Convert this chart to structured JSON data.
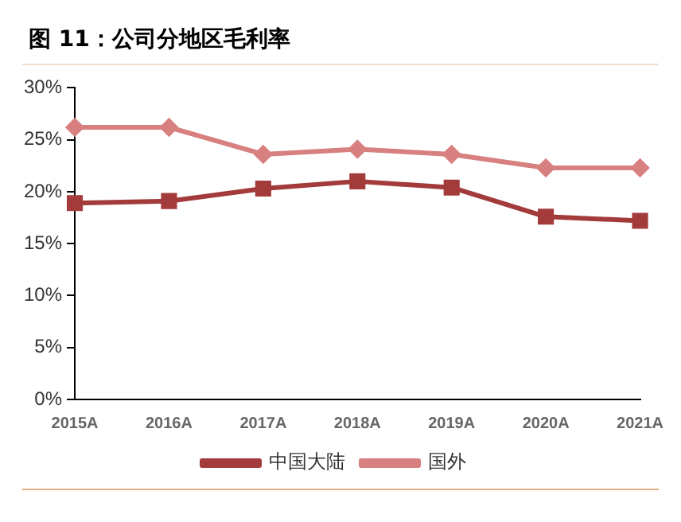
{
  "chart_data": {
    "type": "line",
    "title": "图 11：公司分地区毛利率",
    "categories": [
      "2015A",
      "2016A",
      "2017A",
      "2018A",
      "2019A",
      "2020A",
      "2021A"
    ],
    "series": [
      {
        "name": "中国大陆",
        "color": "#a33b3b",
        "marker": "square",
        "values": [
          18.9,
          19.1,
          20.3,
          21.0,
          20.4,
          17.6,
          17.2
        ]
      },
      {
        "name": "国外",
        "color": "#d88080",
        "marker": "diamond",
        "values": [
          26.2,
          26.2,
          23.6,
          24.1,
          23.6,
          22.3,
          22.3
        ]
      }
    ],
    "ylim": [
      0,
      30
    ],
    "yticks": [
      {
        "value": 0,
        "label": "0%"
      },
      {
        "value": 5,
        "label": "5%"
      },
      {
        "value": 10,
        "label": "10%"
      },
      {
        "value": 15,
        "label": "15%"
      },
      {
        "value": 20,
        "label": "20%"
      },
      {
        "value": 25,
        "label": "25%"
      },
      {
        "value": 30,
        "label": "30%"
      }
    ],
    "grid": false,
    "legend": "bottom"
  }
}
